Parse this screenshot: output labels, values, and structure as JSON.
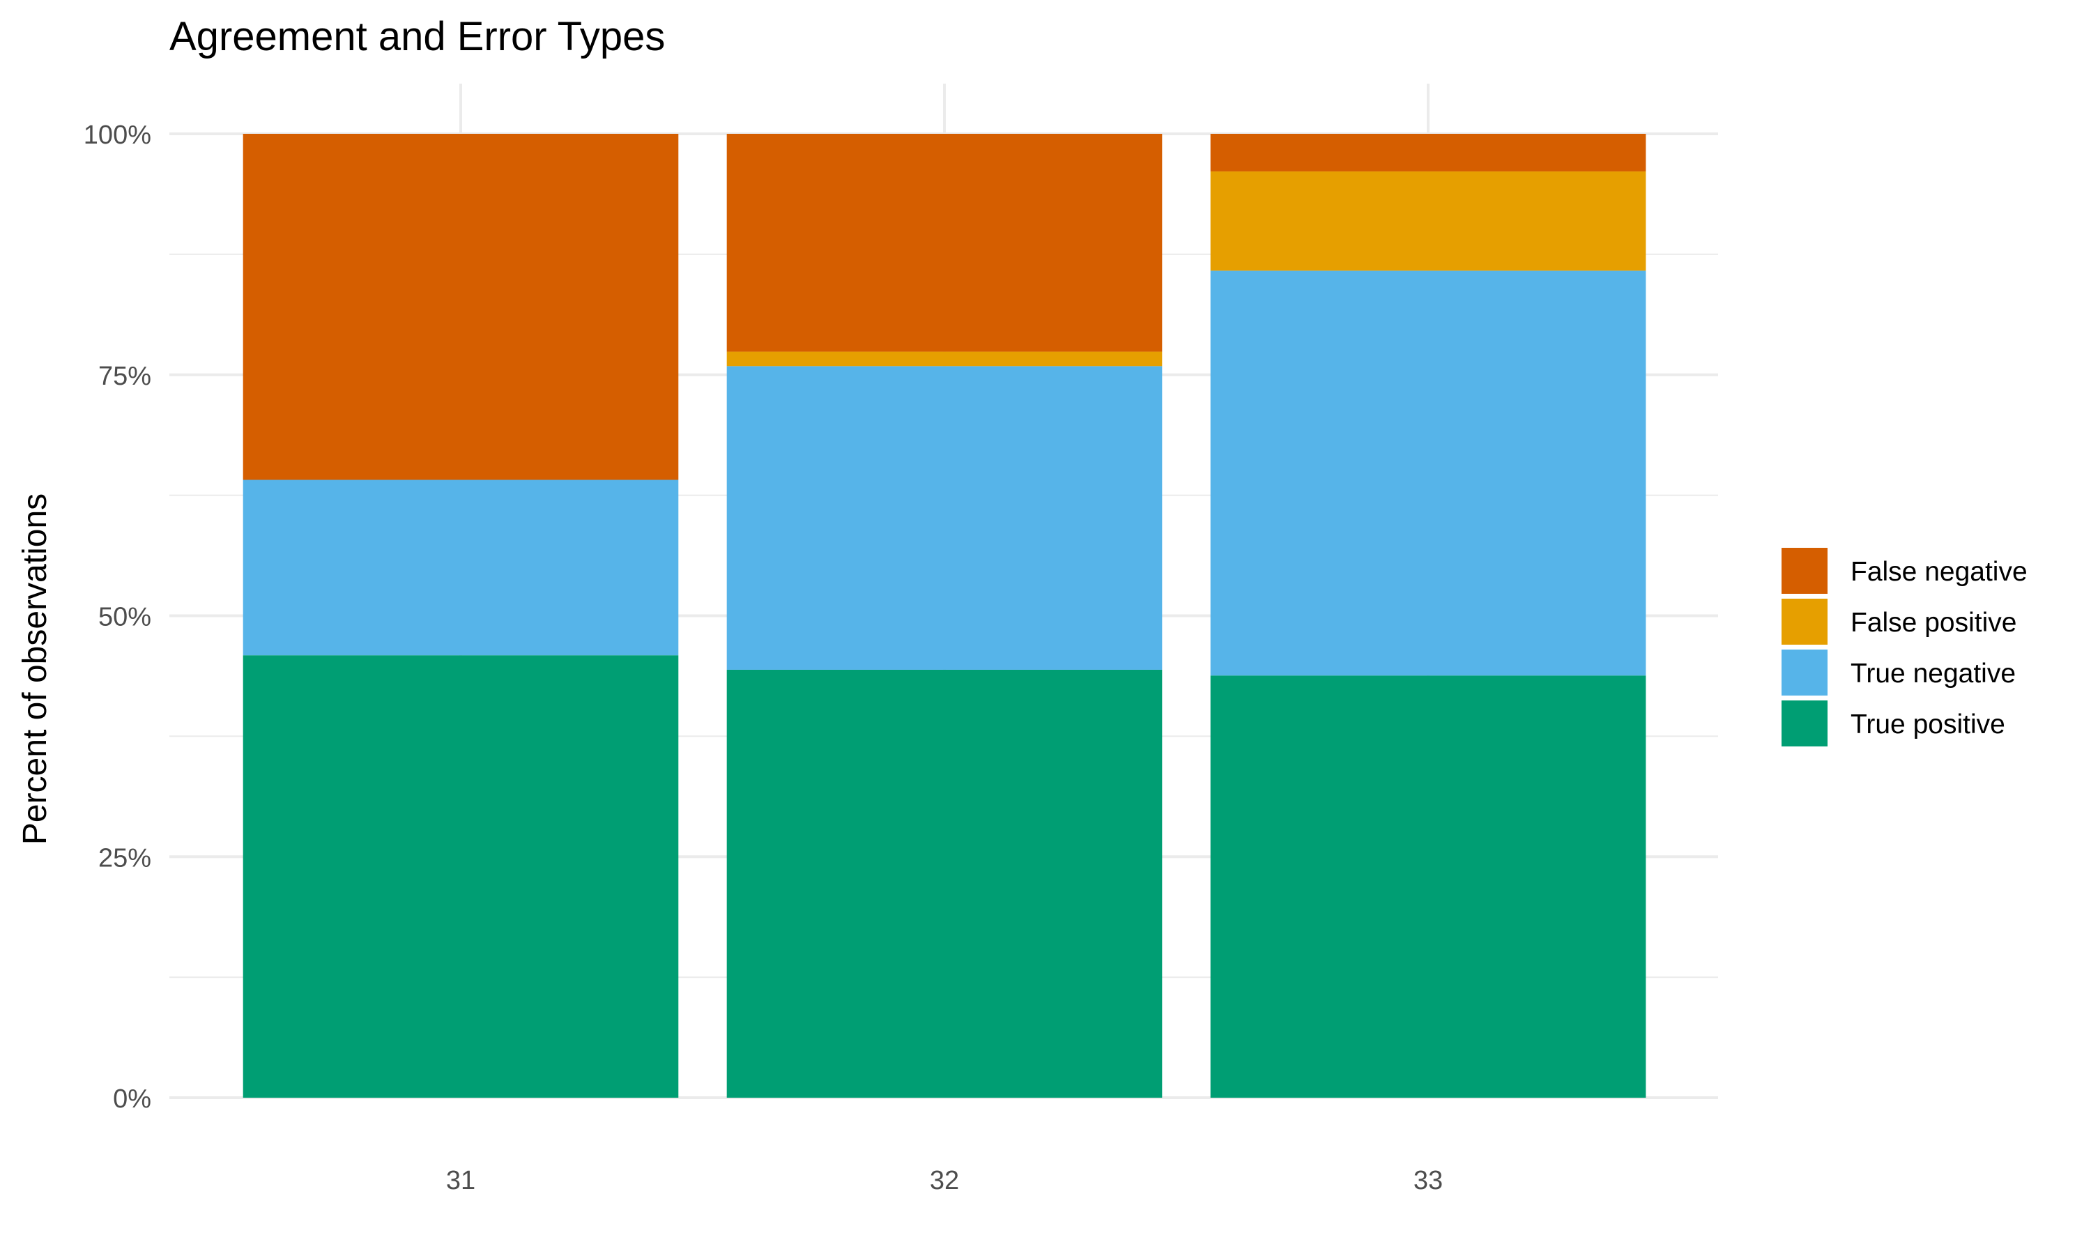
{
  "chart_data": {
    "type": "bar",
    "stacked": true,
    "title": "Agreement and Error Types",
    "xlabel": "",
    "ylabel": "Percent of observations",
    "categories": [
      "31",
      "32",
      "33"
    ],
    "ylim": [
      0,
      1
    ],
    "y_ticks": [
      0,
      0.25,
      0.5,
      0.75,
      1.0
    ],
    "y_tick_labels": [
      "0%",
      "25%",
      "50%",
      "75%",
      "100%"
    ],
    "grid": true,
    "legend_position": "right",
    "series": [
      {
        "name": "True positive",
        "color": "#009E73",
        "values": [
          0.459,
          0.444,
          0.438
        ]
      },
      {
        "name": "True negative",
        "color": "#56B4E9",
        "values": [
          0.182,
          0.315,
          0.42
        ]
      },
      {
        "name": "False positive",
        "color": "#E69F00",
        "values": [
          0.0,
          0.015,
          0.103
        ]
      },
      {
        "name": "False negative",
        "color": "#D55E00",
        "values": [
          0.359,
          0.226,
          0.039
        ]
      }
    ],
    "legend_order": [
      "False negative",
      "False positive",
      "True negative",
      "True positive"
    ]
  }
}
